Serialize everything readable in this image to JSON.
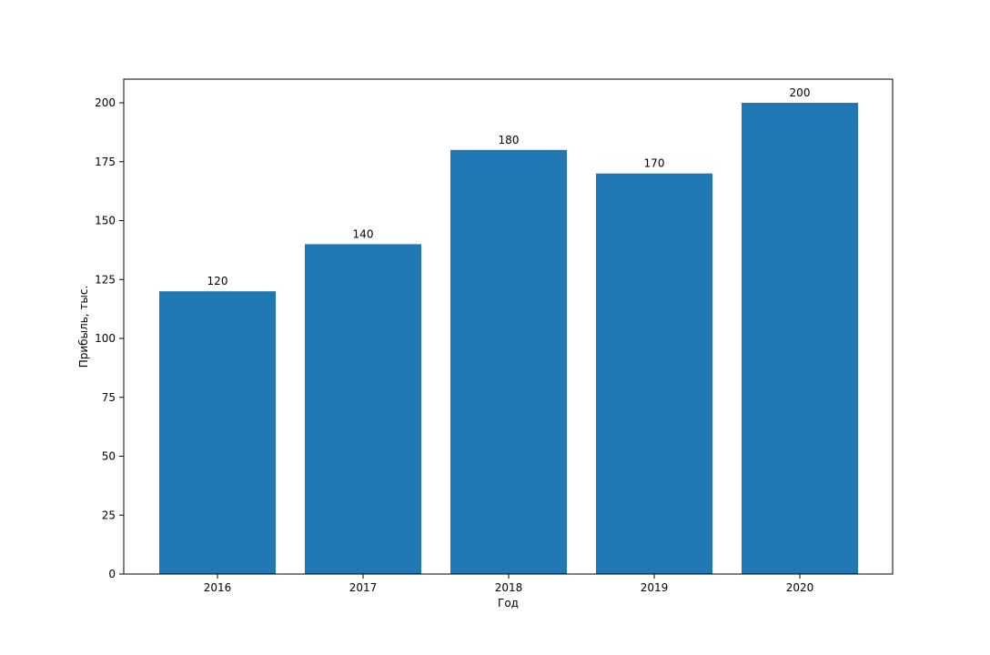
{
  "chart_data": {
    "type": "bar",
    "categories": [
      "2016",
      "2017",
      "2018",
      "2019",
      "2020"
    ],
    "values": [
      120,
      140,
      180,
      170,
      200
    ],
    "data_labels": [
      "120",
      "140",
      "180",
      "170",
      "200"
    ],
    "title": "",
    "xlabel": "Год",
    "ylabel": "Прибыль, тыс.",
    "ylim": [
      0,
      210
    ],
    "yticks": [
      0,
      25,
      50,
      75,
      100,
      125,
      150,
      175,
      200
    ],
    "grid": false,
    "legend": "none",
    "bar_color": "#1f77b4"
  }
}
